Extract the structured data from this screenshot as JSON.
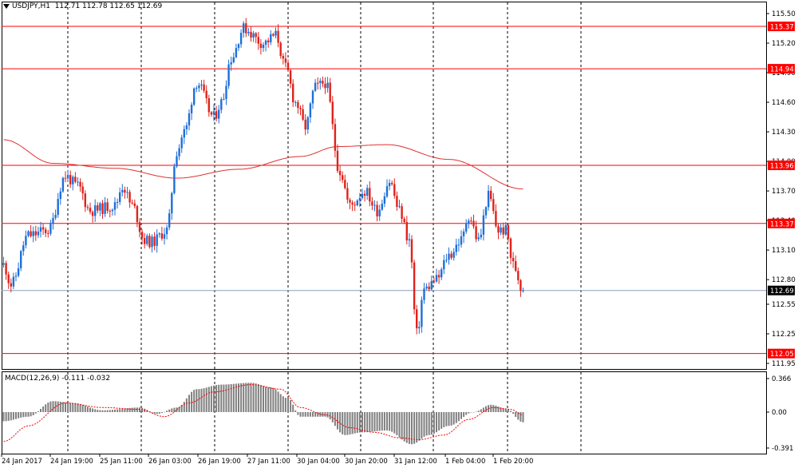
{
  "header": {
    "symbol": "USDJPY,H1",
    "ohlc": "112.71 112.78 112.65 112.69"
  },
  "macd": {
    "label": "MACD(12,26,9) -0.111 -0.032",
    "ticks": [
      "0.366",
      "0.00",
      "-0.391"
    ]
  },
  "colors": {
    "bull": "#1e6fd9",
    "bear": "#e0221b",
    "level": "#ff0000",
    "ma": "#e03030",
    "histogram": "#7f7f7f",
    "signal": "#ff0000",
    "current_price_line": "#8aa0b8"
  },
  "chart_data": {
    "type": "candlestick",
    "instrument": "USDJPY",
    "timeframe": "H1",
    "price_axis": {
      "ticks": [
        "115.50",
        "115.20",
        "114.90",
        "114.60",
        "114.30",
        "114.00",
        "113.70",
        "113.40",
        "113.10",
        "112.80",
        "112.55",
        "112.25",
        "111.95"
      ],
      "range": [
        111.9,
        115.6
      ]
    },
    "levels": [
      {
        "label": "115.37",
        "value": 115.37
      },
      {
        "label": "114.94",
        "value": 114.94
      },
      {
        "label": "113.96",
        "value": 113.96
      },
      {
        "label": "113.37",
        "value": 113.37
      },
      {
        "label": "112.05",
        "value": 112.05
      }
    ],
    "current_price": {
      "label": "112.69",
      "value": 112.69
    },
    "time_labels": [
      "24 Jan 2017",
      "24 Jan 19:00",
      "25 Jan 11:00",
      "26 Jan 03:00",
      "26 Jan 19:00",
      "27 Jan 11:00",
      "30 Jan 04:00",
      "30 Jan 20:00",
      "31 Jan 12:00",
      "1 Feb 04:00",
      "1 Feb 20:00"
    ],
    "moving_average_waypoints": [
      {
        "bar": 0,
        "value": 114.22
      },
      {
        "bar": 20,
        "value": 113.98
      },
      {
        "bar": 45,
        "value": 113.93
      },
      {
        "bar": 70,
        "value": 113.83
      },
      {
        "bar": 95,
        "value": 113.92
      },
      {
        "bar": 120,
        "value": 114.05
      },
      {
        "bar": 135,
        "value": 114.15
      },
      {
        "bar": 155,
        "value": 114.17
      },
      {
        "bar": 180,
        "value": 114.02
      },
      {
        "bar": 210,
        "value": 113.72
      }
    ],
    "price_waypoints": [
      {
        "bar": 0,
        "value": 112.95
      },
      {
        "bar": 3,
        "value": 112.75
      },
      {
        "bar": 10,
        "value": 113.25
      },
      {
        "bar": 18,
        "value": 113.3
      },
      {
        "bar": 25,
        "value": 113.85
      },
      {
        "bar": 30,
        "value": 113.75
      },
      {
        "bar": 35,
        "value": 113.5
      },
      {
        "bar": 45,
        "value": 113.55
      },
      {
        "bar": 48,
        "value": 113.75
      },
      {
        "bar": 52,
        "value": 113.55
      },
      {
        "bar": 57,
        "value": 113.2
      },
      {
        "bar": 60,
        "value": 113.18
      },
      {
        "bar": 66,
        "value": 113.3
      },
      {
        "bar": 70,
        "value": 114.1
      },
      {
        "bar": 73,
        "value": 114.3
      },
      {
        "bar": 78,
        "value": 114.8
      },
      {
        "bar": 85,
        "value": 114.45
      },
      {
        "bar": 88,
        "value": 114.6
      },
      {
        "bar": 92,
        "value": 115.05
      },
      {
        "bar": 97,
        "value": 115.35
      },
      {
        "bar": 105,
        "value": 115.2
      },
      {
        "bar": 110,
        "value": 115.28
      },
      {
        "bar": 114,
        "value": 114.95
      },
      {
        "bar": 118,
        "value": 114.6
      },
      {
        "bar": 122,
        "value": 114.35
      },
      {
        "bar": 126,
        "value": 114.75
      },
      {
        "bar": 130,
        "value": 114.8
      },
      {
        "bar": 136,
        "value": 113.9
      },
      {
        "bar": 140,
        "value": 113.55
      },
      {
        "bar": 146,
        "value": 113.7
      },
      {
        "bar": 151,
        "value": 113.5
      },
      {
        "bar": 156,
        "value": 113.8
      },
      {
        "bar": 160,
        "value": 113.5
      },
      {
        "bar": 164,
        "value": 113.2
      },
      {
        "bar": 167,
        "value": 112.25
      },
      {
        "bar": 170,
        "value": 112.7
      },
      {
        "bar": 175,
        "value": 112.8
      },
      {
        "bar": 180,
        "value": 113.05
      },
      {
        "bar": 185,
        "value": 113.2
      },
      {
        "bar": 188,
        "value": 113.45
      },
      {
        "bar": 192,
        "value": 113.2
      },
      {
        "bar": 196,
        "value": 113.65
      },
      {
        "bar": 200,
        "value": 113.3
      },
      {
        "bar": 203,
        "value": 113.3
      },
      {
        "bar": 206,
        "value": 112.95
      },
      {
        "bar": 210,
        "value": 112.69
      }
    ],
    "macd_histogram_waypoints": [
      {
        "bar": 0,
        "value": -0.1
      },
      {
        "bar": 10,
        "value": -0.05
      },
      {
        "bar": 20,
        "value": 0.12
      },
      {
        "bar": 28,
        "value": 0.1
      },
      {
        "bar": 40,
        "value": 0.02
      },
      {
        "bar": 55,
        "value": 0.05
      },
      {
        "bar": 62,
        "value": -0.02
      },
      {
        "bar": 70,
        "value": 0.05
      },
      {
        "bar": 78,
        "value": 0.25
      },
      {
        "bar": 88,
        "value": 0.3
      },
      {
        "bar": 100,
        "value": 0.32
      },
      {
        "bar": 108,
        "value": 0.27
      },
      {
        "bar": 115,
        "value": 0.15
      },
      {
        "bar": 120,
        "value": -0.05
      },
      {
        "bar": 130,
        "value": -0.05
      },
      {
        "bar": 138,
        "value": -0.25
      },
      {
        "bar": 145,
        "value": -0.22
      },
      {
        "bar": 155,
        "value": -0.2
      },
      {
        "bar": 165,
        "value": -0.35
      },
      {
        "bar": 172,
        "value": -0.25
      },
      {
        "bar": 180,
        "value": -0.15
      },
      {
        "bar": 190,
        "value": 0.0
      },
      {
        "bar": 197,
        "value": 0.08
      },
      {
        "bar": 203,
        "value": 0.04
      },
      {
        "bar": 210,
        "value": -0.111
      }
    ],
    "macd_signal_waypoints": [
      {
        "bar": 0,
        "value": -0.32
      },
      {
        "bar": 10,
        "value": -0.15
      },
      {
        "bar": 25,
        "value": 0.1
      },
      {
        "bar": 40,
        "value": 0.05
      },
      {
        "bar": 55,
        "value": 0.03
      },
      {
        "bar": 65,
        "value": -0.05
      },
      {
        "bar": 75,
        "value": 0.1
      },
      {
        "bar": 85,
        "value": 0.22
      },
      {
        "bar": 100,
        "value": 0.3
      },
      {
        "bar": 112,
        "value": 0.25
      },
      {
        "bar": 120,
        "value": 0.05
      },
      {
        "bar": 130,
        "value": -0.03
      },
      {
        "bar": 140,
        "value": -0.17
      },
      {
        "bar": 150,
        "value": -0.22
      },
      {
        "bar": 160,
        "value": -0.28
      },
      {
        "bar": 168,
        "value": -0.3
      },
      {
        "bar": 178,
        "value": -0.25
      },
      {
        "bar": 188,
        "value": -0.08
      },
      {
        "bar": 198,
        "value": 0.05
      },
      {
        "bar": 205,
        "value": 0.03
      },
      {
        "bar": 210,
        "value": -0.032
      }
    ],
    "macd_range": [
      -0.42,
      0.39
    ]
  }
}
